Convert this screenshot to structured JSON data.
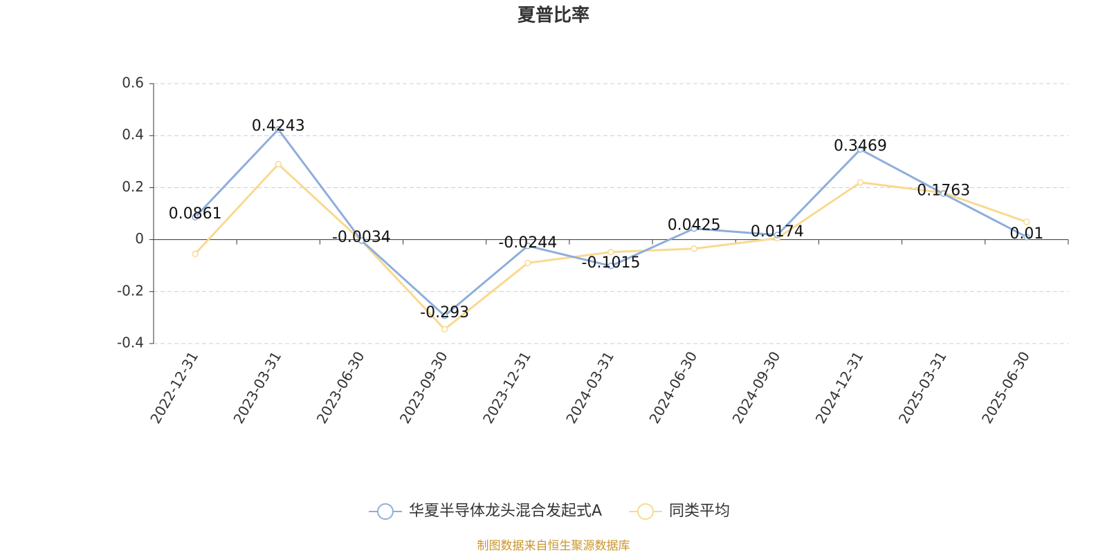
{
  "chart_data": {
    "type": "line",
    "title": "夏普比率",
    "categories": [
      "2022-12-31",
      "2023-03-31",
      "2023-06-30",
      "2023-09-30",
      "2023-12-31",
      "2024-03-31",
      "2024-06-30",
      "2024-09-30",
      "2024-12-31",
      "2025-03-31",
      "2025-06-30"
    ],
    "series": [
      {
        "name": "华夏半导体龙头混合发起式A",
        "color": "#8eaedb",
        "values": [
          0.0861,
          0.4243,
          -0.0034,
          -0.293,
          -0.0244,
          -0.1015,
          0.0425,
          0.0174,
          0.3469,
          0.1763,
          0.01
        ]
      },
      {
        "name": "同类平均",
        "color": "#f9d98f",
        "values": [
          -0.055,
          0.29,
          -0.005,
          -0.345,
          -0.09,
          -0.048,
          -0.035,
          0.005,
          0.22,
          0.18,
          0.068
        ]
      }
    ],
    "ylim": [
      -0.4,
      0.6
    ],
    "yticks": [
      -0.4,
      -0.2,
      0,
      0.2,
      0.4,
      0.6
    ],
    "grid": true,
    "legend": "bottom",
    "source": "制图数据来自恒生聚源数据库"
  }
}
